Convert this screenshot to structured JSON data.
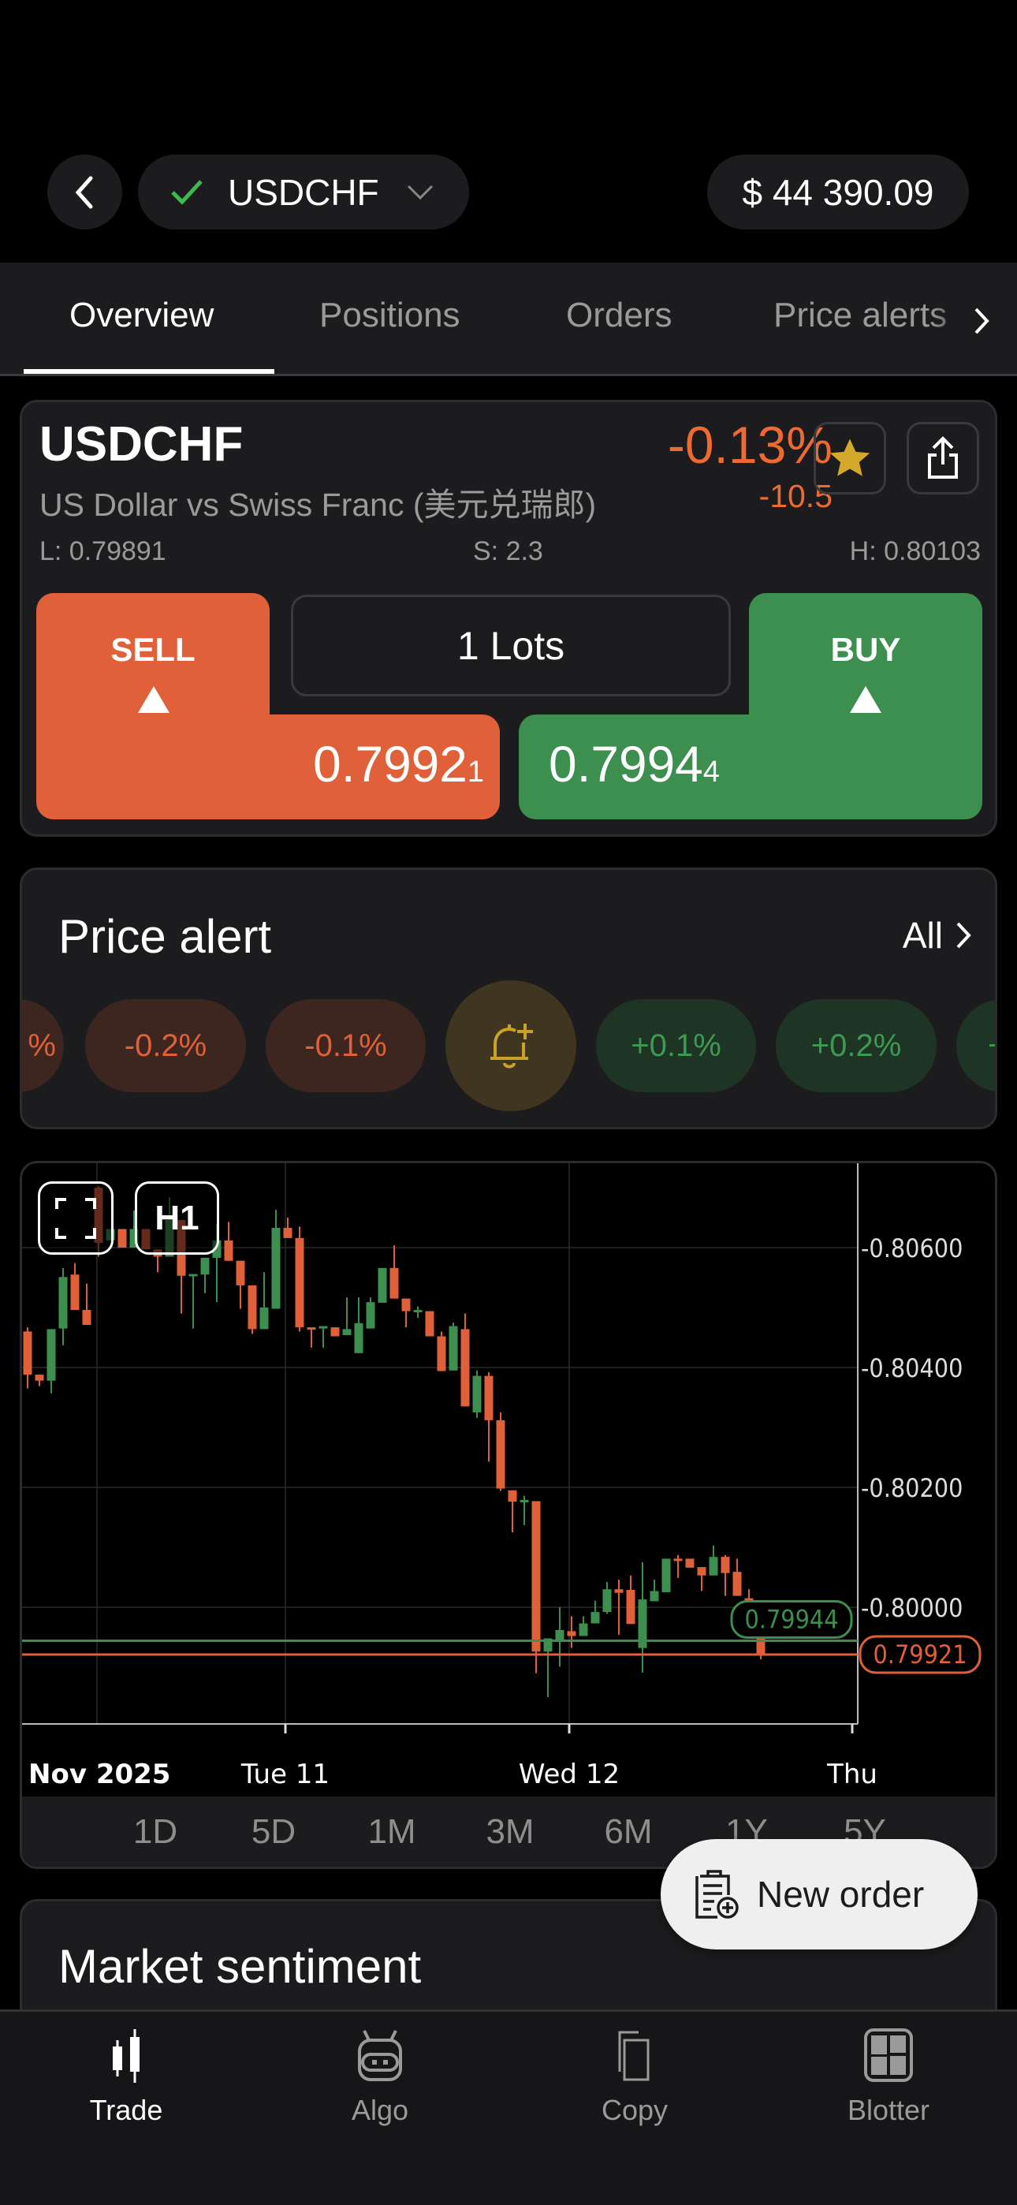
{
  "header": {
    "symbol": "USDCHF",
    "balance": "$ 44 390.09",
    "status_icon": "check-icon",
    "status_color": "#3dbb4f"
  },
  "tabs": [
    {
      "label": "Overview",
      "active": true
    },
    {
      "label": "Positions"
    },
    {
      "label": "Orders"
    },
    {
      "label": "Price alerts"
    }
  ],
  "quote": {
    "symbol": "USDCHF",
    "description": "US Dollar vs Swiss Franc (美元兑瑞郎)",
    "change_pct": "-0.13%",
    "change_pts": "-10.5",
    "low": "L: 0.79891",
    "spread": "S: 2.3",
    "high": "H: 0.80103",
    "favorite": true
  },
  "trade": {
    "sell_label": "SELL",
    "buy_label": "BUY",
    "lots": "1 Lots",
    "sell_price": "0.7992",
    "sell_pip": "1",
    "buy_price": "0.7994",
    "buy_pip": "4",
    "sell_color": "#e0603a",
    "buy_color": "#3d8f4f"
  },
  "price_alert": {
    "title": "Price alert",
    "all_label": "All",
    "chips": [
      "%",
      "-0.2%",
      "-0.1%",
      "+0.1%",
      "+0.2%",
      "+"
    ]
  },
  "chart_data": {
    "type": "candlestick",
    "interval": "H1",
    "ylim": [
      0.798,
      0.8072
    ],
    "yticks": [
      "0.80600",
      "0.80400",
      "0.80200",
      "0.80000"
    ],
    "xticks": [
      "Nov 2025",
      "Tue 11",
      "Wed 12",
      "Thu"
    ],
    "grid": true,
    "bid": "0.79921",
    "ask": "0.79944",
    "ask_label": "0.79944",
    "candles": [
      [
        0.8046,
        0.80467,
        0.80365,
        0.80388
      ],
      [
        0.80388,
        0.80388,
        0.80369,
        0.80378
      ],
      [
        0.80378,
        0.80464,
        0.80357,
        0.80464
      ],
      [
        0.80465,
        0.80566,
        0.80437,
        0.80551
      ],
      [
        0.80555,
        0.80574,
        0.80496,
        0.80496
      ],
      [
        0.80496,
        0.8054,
        0.80471,
        0.80471
      ],
      [
        0.807,
        0.80703,
        0.80585,
        0.80608
      ],
      [
        0.80612,
        0.80631,
        0.80612,
        0.80631
      ],
      [
        0.80631,
        0.80631,
        0.806,
        0.806
      ],
      [
        0.806,
        0.80662,
        0.806,
        0.80631
      ],
      [
        0.80631,
        0.80631,
        0.80597,
        0.80597
      ],
      [
        0.80597,
        0.80597,
        0.80559,
        0.80585
      ],
      [
        0.80585,
        0.80684,
        0.80585,
        0.80646
      ],
      [
        0.80646,
        0.80646,
        0.8049,
        0.80553
      ],
      [
        0.80555,
        0.80556,
        0.80465,
        0.80556
      ],
      [
        0.80555,
        0.80583,
        0.80524,
        0.80583
      ],
      [
        0.80583,
        0.80639,
        0.80509,
        0.80612
      ],
      [
        0.80612,
        0.80643,
        0.80578,
        0.80578
      ],
      [
        0.80578,
        0.80578,
        0.80498,
        0.80537
      ],
      [
        0.80537,
        0.80537,
        0.80456,
        0.80464
      ],
      [
        0.80464,
        0.80559,
        0.80464,
        0.805
      ],
      [
        0.80498,
        0.80663,
        0.80498,
        0.80633
      ],
      [
        0.80633,
        0.8065,
        0.80616,
        0.80616
      ],
      [
        0.80616,
        0.80635,
        0.8046,
        0.80467
      ],
      [
        0.80467,
        0.80467,
        0.80433,
        0.80465
      ],
      [
        0.80465,
        0.80469,
        0.80433,
        0.80469
      ],
      [
        0.80467,
        0.80467,
        0.80452,
        0.80452
      ],
      [
        0.80454,
        0.80517,
        0.80454,
        0.80464
      ],
      [
        0.80424,
        0.80517,
        0.80424,
        0.80474
      ],
      [
        0.80465,
        0.80517,
        0.80465,
        0.80509
      ],
      [
        0.80508,
        0.80566,
        0.80508,
        0.80566
      ],
      [
        0.80566,
        0.80604,
        0.80515,
        0.80515
      ],
      [
        0.80515,
        0.80515,
        0.80467,
        0.80494
      ],
      [
        0.80494,
        0.80502,
        0.80483,
        0.80496
      ],
      [
        0.80494,
        0.80494,
        0.80452,
        0.80452
      ],
      [
        0.80452,
        0.8046,
        0.80394,
        0.80394
      ],
      [
        0.80395,
        0.80475,
        0.80395,
        0.80469
      ],
      [
        0.80464,
        0.8049,
        0.80335,
        0.80335
      ],
      [
        0.80325,
        0.80395,
        0.80316,
        0.80386
      ],
      [
        0.80386,
        0.80392,
        0.80243,
        0.80312
      ],
      [
        0.80312,
        0.80325,
        0.80194,
        0.80198
      ],
      [
        0.80195,
        0.80195,
        0.80125,
        0.80176
      ],
      [
        0.80175,
        0.80186,
        0.80137,
        0.80179
      ],
      [
        0.80177,
        0.80177,
        0.7989,
        0.79926
      ],
      [
        0.79926,
        0.79948,
        0.7985,
        0.79948
      ],
      [
        0.79945,
        0.8,
        0.79901,
        0.79962
      ],
      [
        0.7996,
        0.79985,
        0.79932,
        0.79952
      ],
      [
        0.79952,
        0.79985,
        0.79952,
        0.79973
      ],
      [
        0.79973,
        0.80011,
        0.79973,
        0.79992
      ],
      [
        0.79992,
        0.80042,
        0.79989,
        0.8003
      ],
      [
        0.8003,
        0.80046,
        0.79954,
        0.80024
      ],
      [
        0.80029,
        0.80053,
        0.79972,
        0.79972
      ],
      [
        0.79932,
        0.80075,
        0.79891,
        0.80013
      ],
      [
        0.8001,
        0.80046,
        0.8001,
        0.80027
      ],
      [
        0.80025,
        0.80081,
        0.80025,
        0.80081
      ],
      [
        0.80081,
        0.80087,
        0.80049,
        0.80078
      ],
      [
        0.80081,
        0.80081,
        0.80066,
        0.80066
      ],
      [
        0.80067,
        0.80067,
        0.80027,
        0.80053
      ],
      [
        0.80053,
        0.80103,
        0.80053,
        0.80084
      ],
      [
        0.80084,
        0.80087,
        0.80019,
        0.80057
      ],
      [
        0.80059,
        0.80081,
        0.80019,
        0.80019
      ],
      [
        0.80015,
        0.8003,
        0.79951,
        0.79966
      ],
      [
        0.79964,
        0.8,
        0.79913,
        0.79922
      ]
    ],
    "up_color": "#3d8f4f",
    "down_color": "#e0603a"
  },
  "timeframes": [
    "1D",
    "5D",
    "1M",
    "3M",
    "6M",
    "1Y",
    "5Y"
  ],
  "new_order": "New order",
  "market_sentiment": {
    "title": "Market sentiment"
  },
  "nav": [
    {
      "label": "Trade",
      "active": true
    },
    {
      "label": "Algo"
    },
    {
      "label": "Copy"
    },
    {
      "label": "Blotter"
    }
  ]
}
